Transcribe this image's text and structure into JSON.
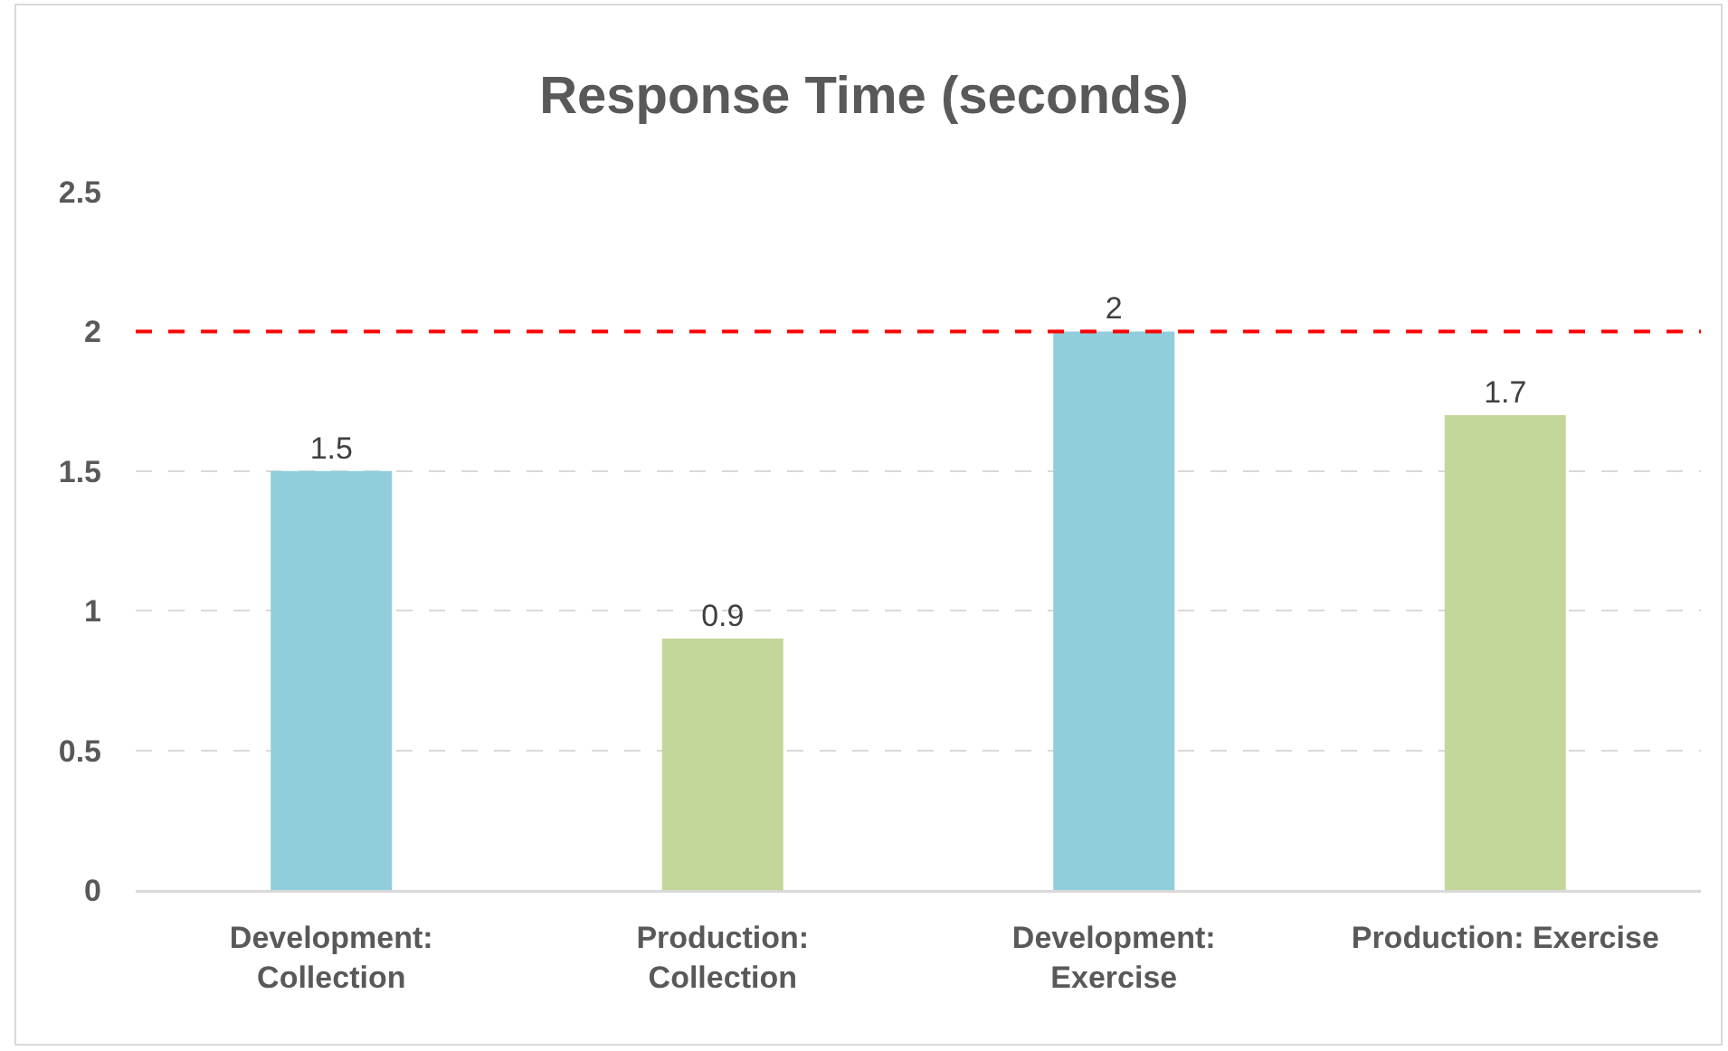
{
  "chart_data": {
    "type": "bar",
    "title": "Response Time (seconds)",
    "categories": [
      "Development: Collection",
      "Production: Collection",
      "Development: Exercise",
      "Production: Exercise"
    ],
    "values": [
      1.5,
      0.9,
      2,
      1.7
    ],
    "colors": [
      "#92cddc",
      "#c4d79b",
      "#92cddc",
      "#c4d79b"
    ],
    "ylim": [
      0,
      2.5
    ],
    "yticks": [
      0,
      0.5,
      1,
      1.5,
      2,
      2.5
    ],
    "grid": "y",
    "data_labels": true,
    "ref_lines": [
      {
        "axis": "y",
        "value": 2,
        "color": "#ff0000",
        "line_style": "dashed"
      }
    ]
  }
}
